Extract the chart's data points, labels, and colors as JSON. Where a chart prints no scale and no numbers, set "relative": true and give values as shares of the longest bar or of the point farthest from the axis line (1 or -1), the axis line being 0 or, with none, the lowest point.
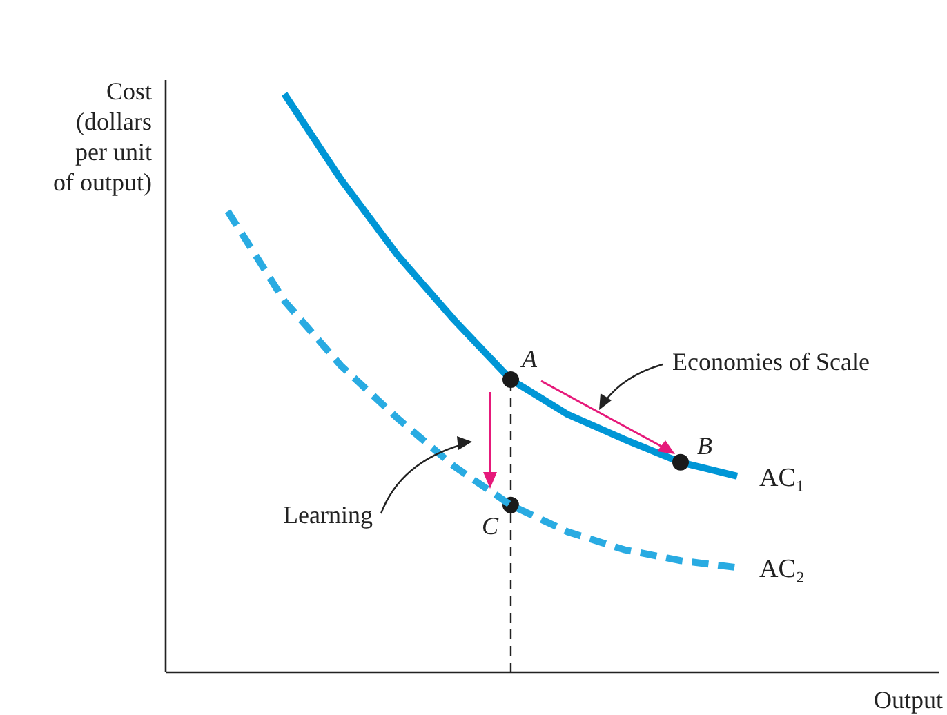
{
  "chart_data": {
    "type": "line",
    "relative": true,
    "xlabel": "Output",
    "ylabel": "Cost (dollars per unit of output)",
    "categories": [
      null,
      null,
      null,
      null,
      null,
      null,
      null,
      null,
      null,
      null
    ],
    "series": [
      {
        "name": "AC₁",
        "color": "#0096d6",
        "line_style": "solid",
        "values": [
          null,
          1,
          0.852,
          0.721,
          0.609,
          0.506,
          0.446,
          0.403,
          0.363,
          0.339
        ]
      },
      {
        "name": "AC₂",
        "color": "#29abe2",
        "line_style": "dashed",
        "values": [
          0.797,
          0.642,
          0.53,
          0.439,
          0.356,
          0.289,
          0.243,
          0.212,
          0.193,
          0.181
        ]
      }
    ],
    "annotations": [
      {
        "text": "A",
        "y": 0.506
      },
      {
        "text": "B",
        "y": 0.363
      },
      "C",
      "Economies of Scale",
      "Learning"
    ]
  }
}
